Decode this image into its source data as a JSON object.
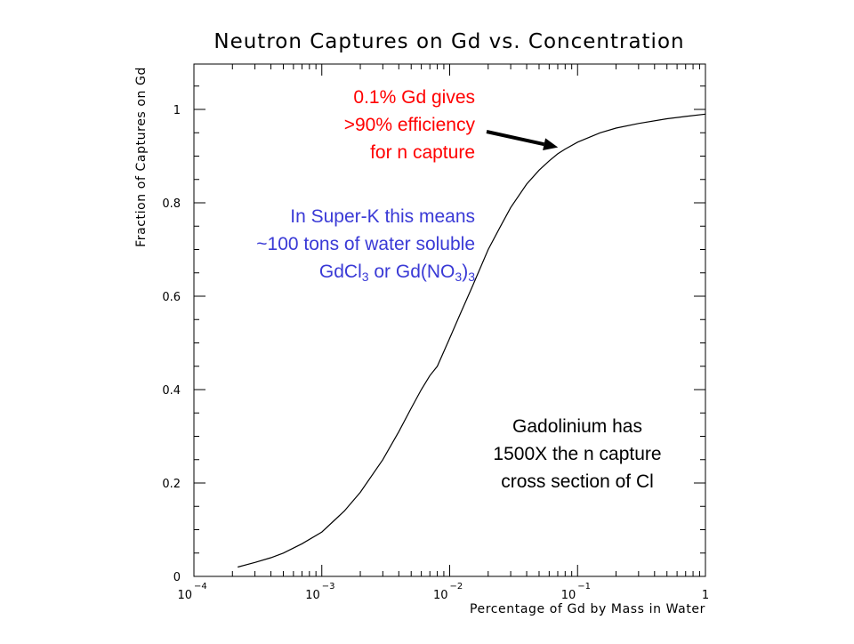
{
  "chart_data": {
    "type": "line",
    "title": "Neutron Captures on Gd vs. Concentration",
    "xlabel": "Percentage of Gd by Mass in Water",
    "ylabel": "Fraction of Captures on Gd",
    "x_scale": "log",
    "xlim": [
      0.0001,
      1
    ],
    "ylim": [
      0,
      1.1
    ],
    "grid": false,
    "x_ticks": [
      {
        "value": 0.0001,
        "base": "10",
        "exp": "−4"
      },
      {
        "value": 0.001,
        "base": "10",
        "exp": "−3"
      },
      {
        "value": 0.01,
        "base": "10",
        "exp": "−2"
      },
      {
        "value": 0.1,
        "base": "10",
        "exp": "−1"
      },
      {
        "value": 1,
        "base": "1",
        "exp": ""
      }
    ],
    "y_ticks": [
      {
        "value": 0,
        "label": "0"
      },
      {
        "value": 0.2,
        "label": "0.2"
      },
      {
        "value": 0.4,
        "label": "0.4"
      },
      {
        "value": 0.6,
        "label": "0.6"
      },
      {
        "value": 0.8,
        "label": "0.8"
      },
      {
        "value": 1,
        "label": "1"
      }
    ],
    "series": [
      {
        "x": [
          0.00022,
          0.0003,
          0.0004,
          0.0005,
          0.0007,
          0.001,
          0.0015,
          0.002,
          0.003,
          0.004,
          0.005,
          0.006,
          0.007,
          0.008,
          0.01,
          0.012,
          0.015,
          0.02,
          0.025,
          0.03,
          0.04,
          0.05,
          0.06,
          0.07,
          0.08,
          0.1,
          0.15,
          0.2,
          0.3,
          0.5,
          0.7,
          1.0
        ],
        "y": [
          0.02,
          0.03,
          0.04,
          0.05,
          0.07,
          0.095,
          0.14,
          0.18,
          0.25,
          0.31,
          0.36,
          0.4,
          0.43,
          0.45,
          0.51,
          0.56,
          0.62,
          0.7,
          0.75,
          0.79,
          0.84,
          0.87,
          0.89,
          0.905,
          0.915,
          0.93,
          0.95,
          0.96,
          0.97,
          0.98,
          0.985,
          0.99
        ]
      }
    ],
    "annotations": [
      {
        "color": "#ff0000",
        "lines": [
          "0.1% Gd gives",
          ">90% efficiency",
          "for n capture"
        ],
        "arrow_to": {
          "x": 0.1,
          "y": 0.915
        }
      },
      {
        "color": "#3a3ad6",
        "lines": [
          {
            "parts": [
              {
                "t": "In Super-K this means"
              }
            ]
          },
          {
            "parts": [
              {
                "t": "~100 tons of water soluble"
              }
            ]
          },
          {
            "parts": [
              {
                "t": "GdCl"
              },
              {
                "t": "3",
                "sub": true
              },
              {
                "t": " or Gd(NO"
              },
              {
                "t": "3",
                "sub": true
              },
              {
                "t": ")"
              },
              {
                "t": "3",
                "sub": true
              }
            ]
          }
        ]
      },
      {
        "color": "#000000",
        "lines": [
          "Gadolinium has",
          "1500X the n capture",
          "cross section of Cl"
        ]
      }
    ]
  }
}
